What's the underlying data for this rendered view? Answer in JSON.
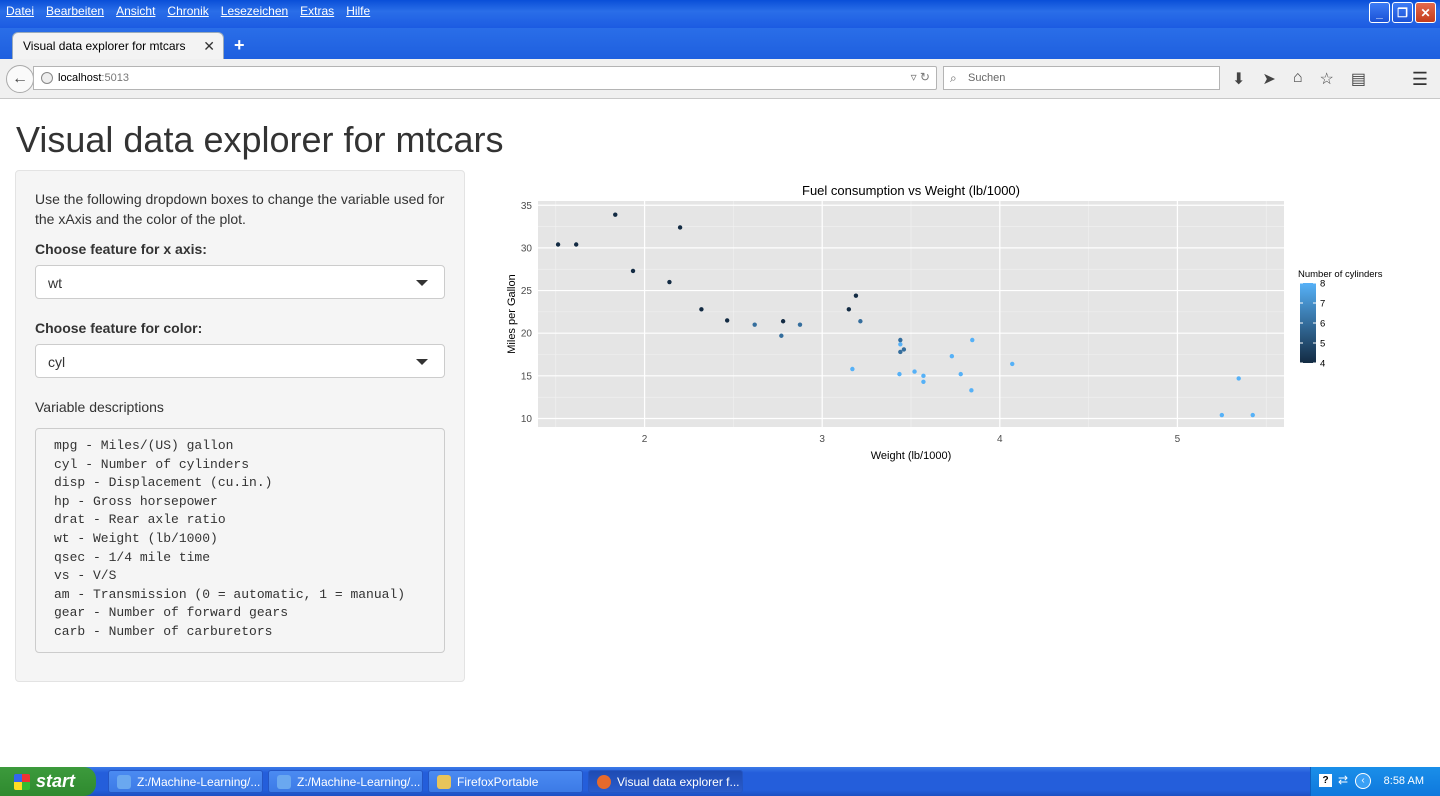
{
  "menu": [
    "Datei",
    "Bearbeiten",
    "Ansicht",
    "Chronik",
    "Lesezeichen",
    "Extras",
    "Hilfe"
  ],
  "tab": {
    "title": "Visual data explorer for mtcars"
  },
  "url": {
    "host": "localhost",
    "port": ":5013"
  },
  "search": {
    "placeholder": "Suchen"
  },
  "page": {
    "title": "Visual data explorer for mtcars",
    "intro": "Use the following dropdown boxes to change the variable used for the xAxis and the color of the plot.",
    "x_label": "Choose feature for x axis:",
    "x_value": "wt",
    "color_label": "Choose feature for color:",
    "color_value": "cyl",
    "desc_label": "Variable descriptions",
    "descriptions": "mpg - Miles/(US) gallon\ncyl - Number of cylinders\ndisp - Displacement (cu.in.)\nhp - Gross horsepower\ndrat - Rear axle ratio\nwt - Weight (lb/1000)\nqsec - 1/4 mile time\nvs - V/S\nam - Transmission (0 = automatic, 1 = manual)\ngear - Number of forward gears\ncarb - Number of carburetors"
  },
  "chart_data": {
    "type": "scatter",
    "title": "Fuel consumption vs Weight (lb/1000)",
    "xlabel": "Weight (lb/1000)",
    "ylabel": "Miles per Gallon",
    "xlim": [
      1.4,
      5.6
    ],
    "ylim": [
      9,
      35.5
    ],
    "xticks": [
      2,
      3,
      4,
      5
    ],
    "yticks": [
      10,
      15,
      20,
      25,
      30,
      35
    ],
    "grid": true,
    "legend": {
      "title": "Number of cylinders",
      "placement": "right",
      "values": [
        8,
        7,
        6,
        5,
        4
      ]
    },
    "color_low": "#132B43",
    "color_high": "#56B1F7",
    "points": [
      {
        "x": 1.513,
        "y": 30.4,
        "c": 4
      },
      {
        "x": 1.615,
        "y": 30.4,
        "c": 4
      },
      {
        "x": 1.835,
        "y": 33.9,
        "c": 4
      },
      {
        "x": 1.935,
        "y": 27.3,
        "c": 4
      },
      {
        "x": 2.14,
        "y": 26.0,
        "c": 4
      },
      {
        "x": 2.2,
        "y": 32.4,
        "c": 4
      },
      {
        "x": 2.32,
        "y": 22.8,
        "c": 4
      },
      {
        "x": 2.465,
        "y": 21.5,
        "c": 4
      },
      {
        "x": 2.62,
        "y": 21.0,
        "c": 6
      },
      {
        "x": 2.77,
        "y": 19.7,
        "c": 6
      },
      {
        "x": 2.78,
        "y": 21.4,
        "c": 4
      },
      {
        "x": 2.875,
        "y": 21.0,
        "c": 6
      },
      {
        "x": 3.15,
        "y": 22.8,
        "c": 4
      },
      {
        "x": 3.17,
        "y": 15.8,
        "c": 8
      },
      {
        "x": 3.19,
        "y": 24.4,
        "c": 4
      },
      {
        "x": 3.215,
        "y": 21.4,
        "c": 6
      },
      {
        "x": 3.435,
        "y": 15.2,
        "c": 8
      },
      {
        "x": 3.44,
        "y": 18.7,
        "c": 8
      },
      {
        "x": 3.44,
        "y": 19.2,
        "c": 6
      },
      {
        "x": 3.44,
        "y": 17.8,
        "c": 6
      },
      {
        "x": 3.46,
        "y": 18.1,
        "c": 6
      },
      {
        "x": 3.52,
        "y": 15.5,
        "c": 8
      },
      {
        "x": 3.57,
        "y": 14.3,
        "c": 8
      },
      {
        "x": 3.57,
        "y": 15.0,
        "c": 8
      },
      {
        "x": 3.73,
        "y": 17.3,
        "c": 8
      },
      {
        "x": 3.78,
        "y": 15.2,
        "c": 8
      },
      {
        "x": 3.84,
        "y": 13.3,
        "c": 8
      },
      {
        "x": 3.845,
        "y": 19.2,
        "c": 8
      },
      {
        "x": 4.07,
        "y": 16.4,
        "c": 8
      },
      {
        "x": 5.25,
        "y": 10.4,
        "c": 8
      },
      {
        "x": 5.345,
        "y": 14.7,
        "c": 8
      },
      {
        "x": 5.424,
        "y": 10.4,
        "c": 8
      }
    ]
  },
  "taskbar": {
    "start": "start",
    "tasks": [
      "Z:/Machine-Learning/...",
      "Z:/Machine-Learning/...",
      "FirefoxPortable",
      "Visual data explorer f..."
    ],
    "clock": "8:58 AM"
  }
}
